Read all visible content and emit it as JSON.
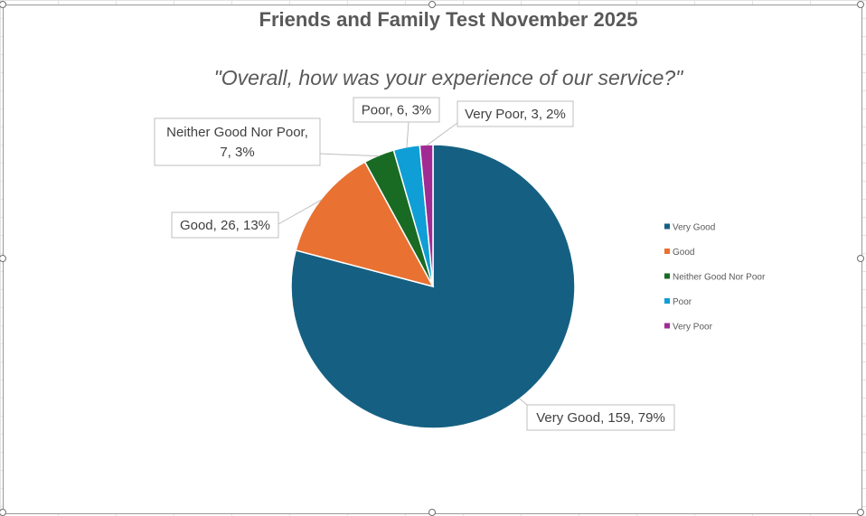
{
  "chart_data": {
    "type": "pie",
    "title": "Friends and Family Test November 2025",
    "subtitle": "\"Overall, how was your experience of our service?\"",
    "categories": [
      "Very Good",
      "Good",
      "Neither Good Nor Poor",
      "Poor",
      "Very Poor"
    ],
    "values": [
      159,
      26,
      7,
      6,
      3
    ],
    "percentages": [
      "79%",
      "13%",
      "3%",
      "3%",
      "2%"
    ],
    "colors": [
      "#156082",
      "#E97132",
      "#196B24",
      "#0F9ED5",
      "#A02B93"
    ],
    "data_labels": [
      [
        "Very Good, 159, 79%"
      ],
      [
        "Good, 26, 13%"
      ],
      [
        "Neither Good Nor Poor,",
        "7, 3%"
      ],
      [
        "Poor, 6, 3%"
      ],
      [
        "Very Poor, 3, 2%"
      ]
    ],
    "legend_position": "right"
  }
}
